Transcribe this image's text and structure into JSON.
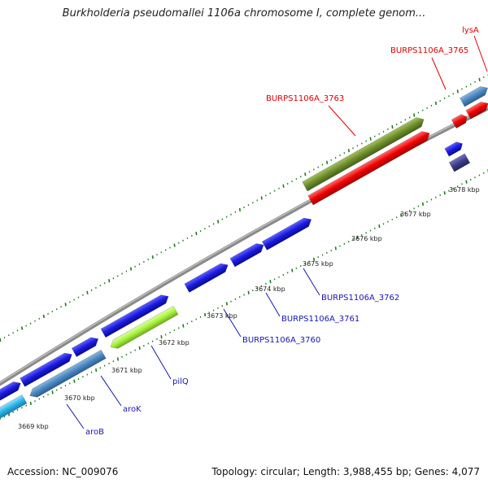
{
  "title": "Burkholderia pseudomallei 1106a chromosome I, complete genom...",
  "footer": {
    "accession": "Accession: NC_009076",
    "summary": "Topology: circular; Length: 3,988,455 bp; Genes: 4,077"
  },
  "ticks": [
    "3669 kbp",
    "3670 kbp",
    "3671 kbp",
    "3672 kbp",
    "3673 kbp",
    "3674 kbp",
    "3675 kbp",
    "3676 kbp",
    "3677 kbp",
    "3678 kbp"
  ],
  "gene_labels": {
    "aroB": "aroB",
    "aroK": "aroK",
    "pilQ": "pilQ",
    "burps_3760": "BURPS1106A_3760",
    "burps_3761": "BURPS1106A_3761",
    "burps_3762": "BURPS1106A_3762",
    "burps_3763": "BURPS1106A_3763",
    "burps_3765": "BURPS1106A_3765",
    "lysA": "lysA"
  },
  "colors": {
    "backbone": "#8a8a8a",
    "blue_gene": "#1a1ae0",
    "steelblue_gene": "#4a86c0",
    "cyan_gene": "#29b5e8",
    "lime_gene": "#a6f23c",
    "olive_gene": "#6e8e2a",
    "red_gene": "#f00000",
    "purple_gene": "#3d3d8a",
    "tick_green": "#1e7a1e"
  }
}
